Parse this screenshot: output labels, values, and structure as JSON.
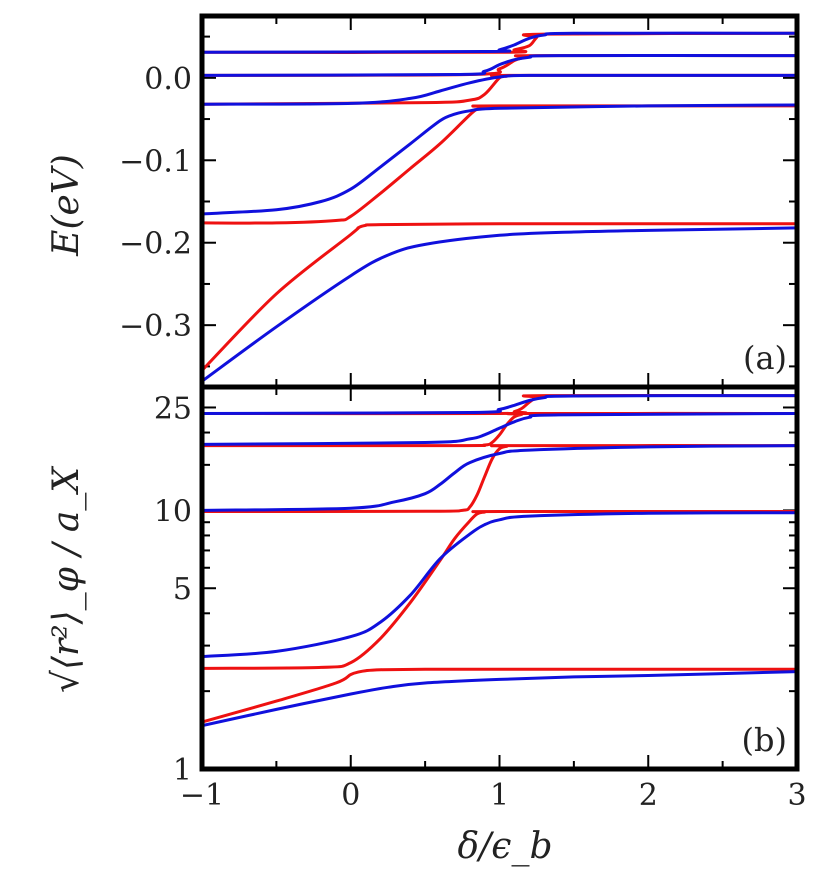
{
  "chart_data": [
    {
      "panel": "(a)",
      "type": "line",
      "xlabel": "δ/ϵ_b",
      "ylabel": "E(eV)",
      "xlim": [
        -1,
        3
      ],
      "ylim": [
        -0.375,
        0.075
      ],
      "xticks": [
        -1,
        0,
        1,
        2,
        3
      ],
      "yticks": [
        0.0,
        -0.1,
        -0.2,
        -0.3
      ],
      "ytick_labels": [
        "0.0",
        "−0.1",
        "−0.2",
        "−0.3"
      ],
      "series": [
        {
          "name": "red-1",
          "color": "#ee1111",
          "x": [
            -1,
            -0.5,
            0,
            0.05,
            0.1,
            0.2,
            1,
            2,
            3
          ],
          "y": [
            -0.355,
            -0.262,
            -0.19,
            -0.182,
            -0.179,
            -0.178,
            -0.177,
            -0.177,
            -0.177
          ]
        },
        {
          "name": "blue-1",
          "color": "#1010dd",
          "x": [
            -1,
            -0.5,
            0,
            0.25,
            0.5,
            1,
            1.5,
            2,
            3
          ],
          "y": [
            -0.368,
            -0.302,
            -0.24,
            -0.215,
            -0.202,
            -0.191,
            -0.187,
            -0.185,
            -0.182
          ]
        },
        {
          "name": "red-2",
          "color": "#ee1111",
          "x": [
            -1,
            -0.5,
            -0.1,
            0,
            0.2,
            0.4,
            0.6,
            0.8,
            0.85,
            0.9,
            1,
            3
          ],
          "y": [
            -0.176,
            -0.176,
            -0.173,
            -0.168,
            -0.14,
            -0.11,
            -0.08,
            -0.045,
            -0.038,
            -0.035,
            -0.034,
            -0.034
          ]
        },
        {
          "name": "blue-2",
          "color": "#1010dd",
          "x": [
            -1,
            -0.5,
            -0.2,
            0,
            0.2,
            0.4,
            0.6,
            0.7,
            0.8,
            1,
            2,
            3
          ],
          "y": [
            -0.165,
            -0.16,
            -0.15,
            -0.135,
            -0.108,
            -0.08,
            -0.052,
            -0.044,
            -0.04,
            -0.037,
            -0.034,
            -0.033
          ]
        },
        {
          "name": "red-3",
          "color": "#ee1111",
          "x": [
            -1,
            0.5,
            0.8,
            0.9,
            1,
            1.05,
            1.1,
            3
          ],
          "y": [
            -0.032,
            -0.03,
            -0.027,
            -0.02,
            0.0,
            0.002,
            0.003,
            0.003
          ]
        },
        {
          "name": "blue-3",
          "color": "#1010dd",
          "x": [
            -1,
            0,
            0.4,
            0.6,
            0.8,
            1,
            1.2,
            2,
            3
          ],
          "y": [
            -0.032,
            -0.031,
            -0.025,
            -0.016,
            -0.006,
            0.001,
            0.003,
            0.003,
            0.003
          ]
        },
        {
          "name": "red-4",
          "color": "#ee1111",
          "x": [
            -1,
            0.8,
            1.0,
            1.1,
            1.15,
            1.2,
            1.25,
            3
          ],
          "y": [
            0.003,
            0.004,
            0.011,
            0.021,
            0.024,
            0.026,
            0.027,
            0.027
          ]
        },
        {
          "name": "blue-4",
          "color": "#1010dd",
          "x": [
            -1,
            0.7,
            0.9,
            1.0,
            1.1,
            1.2,
            1.4,
            3
          ],
          "y": [
            0.003,
            0.004,
            0.008,
            0.016,
            0.022,
            0.025,
            0.027,
            0.027
          ]
        },
        {
          "name": "red-5",
          "color": "#ee1111",
          "x": [
            -1,
            1.0,
            1.1,
            1.2,
            1.25,
            1.3,
            3
          ],
          "y": [
            0.031,
            0.031,
            0.034,
            0.039,
            0.049,
            0.053,
            0.054
          ]
        },
        {
          "name": "blue-5",
          "color": "#1010dd",
          "x": [
            -1,
            0.9,
            1.0,
            1.1,
            1.2,
            1.3,
            1.5,
            3
          ],
          "y": [
            0.031,
            0.032,
            0.034,
            0.04,
            0.048,
            0.052,
            0.054,
            0.054
          ]
        }
      ]
    },
    {
      "panel": "(b)",
      "type": "line",
      "xlabel": "δ/ϵ_b",
      "ylabel": "√⟨r²⟩_φ / a_X",
      "yscale": "log",
      "xlim": [
        -1,
        3
      ],
      "ylim": [
        1,
        30
      ],
      "xticks": [
        -1,
        0,
        1,
        2,
        3
      ],
      "xtick_labels": [
        "−1",
        "0",
        "1",
        "2",
        "3"
      ],
      "yticks": [
        1,
        5,
        10,
        25
      ],
      "ytick_labels": [
        "1",
        "5",
        "10",
        "25"
      ],
      "series": [
        {
          "name": "red-1",
          "color": "#ee1111",
          "x": [
            -1,
            -0.5,
            -0.1,
            0,
            0.05,
            0.1,
            0.2,
            0.5,
            1,
            2,
            3
          ],
          "y": [
            1.52,
            1.83,
            2.15,
            2.32,
            2.37,
            2.4,
            2.42,
            2.43,
            2.43,
            2.43,
            2.43
          ]
        },
        {
          "name": "blue-1",
          "color": "#1010dd",
          "x": [
            -1,
            -0.5,
            0,
            0.25,
            0.5,
            1,
            1.5,
            2,
            3
          ],
          "y": [
            1.47,
            1.7,
            1.95,
            2.07,
            2.15,
            2.22,
            2.27,
            2.3,
            2.38
          ]
        },
        {
          "name": "red-2",
          "color": "#ee1111",
          "x": [
            -1,
            -0.2,
            0,
            0.2,
            0.4,
            0.6,
            0.7,
            0.8,
            0.85,
            0.9,
            1,
            3
          ],
          "y": [
            2.45,
            2.47,
            2.58,
            3.2,
            4.4,
            6.4,
            7.8,
            9.1,
            9.7,
            9.85,
            9.9,
            9.9
          ]
        },
        {
          "name": "blue-2",
          "color": "#1010dd",
          "x": [
            -1,
            -0.5,
            0,
            0.2,
            0.4,
            0.6,
            0.8,
            0.9,
            1,
            1.2,
            2,
            3
          ],
          "y": [
            2.72,
            2.85,
            3.25,
            3.7,
            4.7,
            6.5,
            8.1,
            8.8,
            9.2,
            9.5,
            9.75,
            9.8
          ]
        },
        {
          "name": "red-3",
          "color": "#ee1111",
          "x": [
            -1,
            0.5,
            0.75,
            0.8,
            0.85,
            0.9,
            0.95,
            1.0,
            1.05,
            1.1,
            3
          ],
          "y": [
            9.9,
            9.92,
            10.0,
            10.3,
            11.5,
            13.5,
            15.8,
            17.3,
            17.7,
            17.8,
            17.8
          ]
        },
        {
          "name": "blue-3",
          "color": "#1010dd",
          "x": [
            -1,
            0,
            0.3,
            0.5,
            0.6,
            0.7,
            0.8,
            1.0,
            1.2,
            2,
            3
          ],
          "y": [
            10.0,
            10.2,
            10.8,
            11.6,
            12.6,
            14.0,
            15.3,
            16.6,
            17.1,
            17.6,
            17.8
          ]
        },
        {
          "name": "red-4",
          "color": "#ee1111",
          "x": [
            -1,
            0.7,
            0.9,
            0.95,
            1.0,
            1.05,
            1.1,
            1.15,
            1.2,
            3
          ],
          "y": [
            17.8,
            17.8,
            17.9,
            18.3,
            19.6,
            21.5,
            23.0,
            23.5,
            23.7,
            23.7
          ]
        },
        {
          "name": "blue-4",
          "color": "#1010dd",
          "x": [
            -1,
            0.5,
            0.8,
            0.9,
            1.0,
            1.1,
            1.2,
            1.4,
            3
          ],
          "y": [
            18.0,
            18.3,
            18.9,
            19.6,
            20.8,
            22.0,
            22.9,
            23.4,
            23.7
          ]
        },
        {
          "name": "red-5",
          "color": "#ee1111",
          "x": [
            -1,
            1.0,
            1.1,
            1.15,
            1.2,
            1.25,
            1.3,
            3
          ],
          "y": [
            23.7,
            23.7,
            24.1,
            24.8,
            26.2,
            27.4,
            27.8,
            27.8
          ]
        },
        {
          "name": "blue-5",
          "color": "#1010dd",
          "x": [
            -1,
            0.8,
            1.0,
            1.1,
            1.2,
            1.3,
            1.5,
            3
          ],
          "y": [
            23.7,
            23.9,
            24.6,
            25.5,
            26.6,
            27.3,
            27.7,
            27.8
          ]
        }
      ]
    }
  ]
}
